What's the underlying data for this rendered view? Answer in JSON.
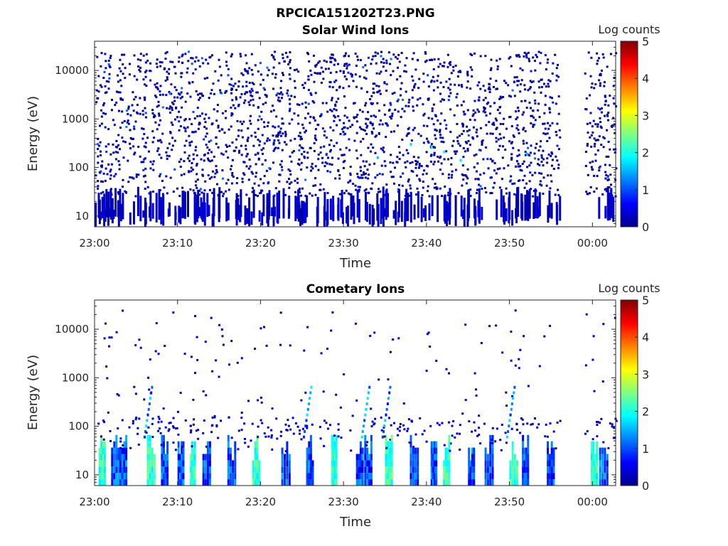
{
  "figure": {
    "title": "RPCICA151202T23.PNG"
  },
  "chart_data": [
    {
      "type": "heatmap",
      "title": "Solar Wind Ions",
      "xlabel": "Time",
      "ylabel": "Energy (eV)",
      "y_scale": "log",
      "x_range": [
        "23:00",
        "00:02"
      ],
      "y_range": [
        6,
        40000
      ],
      "x_ticks": [
        "23:00",
        "23:10",
        "23:20",
        "23:30",
        "23:40",
        "23:50",
        "00:00"
      ],
      "y_ticks": [
        "10",
        "100",
        "1000",
        "10000"
      ],
      "colorbar": {
        "label": "Log counts",
        "range": [
          0,
          5
        ],
        "ticks": [
          "0",
          "1",
          "2",
          "3",
          "4",
          "5"
        ],
        "colormap": "jet"
      },
      "data_gap": [
        "23:56",
        "23:59"
      ],
      "description_of_values": "Sparse scattered single-count (log ~0-0.3) pixels across 10 eV - 20 keV; denser dark blue columns below 30 eV; a few cyan/light-blue points near 150-250 eV around 23:34-23:52"
    },
    {
      "type": "heatmap",
      "title": "Cometary Ions",
      "xlabel": "Time",
      "ylabel": "Energy (eV)",
      "y_scale": "log",
      "x_range": [
        "23:00",
        "00:02"
      ],
      "y_range": [
        6,
        40000
      ],
      "x_ticks": [
        "23:00",
        "23:10",
        "23:20",
        "23:30",
        "23:40",
        "23:50",
        "00:00"
      ],
      "y_ticks": [
        "10",
        "100",
        "1000",
        "10000"
      ],
      "colorbar": {
        "label": "Log counts",
        "range": [
          0,
          5
        ],
        "ticks": [
          "0",
          "1",
          "2",
          "3",
          "4",
          "5"
        ],
        "colormap": "jet"
      },
      "data_gap": [
        "23:56",
        "23:59"
      ],
      "bursts_minutes_after_2300": [
        0.5,
        2,
        3,
        6.3,
        8,
        10,
        11.5,
        13,
        16,
        19,
        22.5,
        25.5,
        28.5,
        31.5,
        32.5,
        35,
        38,
        40.5,
        42,
        45,
        47,
        50,
        51.5,
        54.5,
        59.8,
        60.8
      ],
      "description_of_values": "Low-energy (<60 eV) bursts with log counts up to ~2 (cyan); dispersed signatures extending to 200-500 eV near 23:06, 23:25, 23:32-23:35, 23:50; sparse points up to ~20 keV"
    }
  ]
}
